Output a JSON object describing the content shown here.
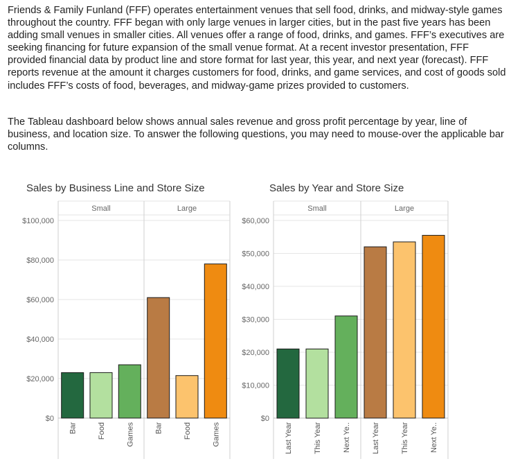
{
  "intro": {
    "paragraph1": "Friends & Family Funland (FFF) operates entertainment venues that sell food, drinks, and midway-style games throughout the country. FFF began with only large venues in larger cities, but in the past five years has been adding small venues in smaller cities. All venues offer a range of food, drinks, and games. FFF’s executives are seeking financing for future expansion of the small venue format. At a recent investor presentation, FFF provided financial data by product line and store format for last year, this year, and next year (forecast). FFF reports revenue at the amount it charges customers for food, drinks, and game services, and cost of goods sold includes FFF’s costs of food, beverages, and midway-game prizes provided to customers.",
    "paragraph2": "The Tableau dashboard below shows annual sales revenue and gross profit percentage by year, line of business, and location size. To answer the following questions, you may need to mouse-over the applicable bar columns."
  },
  "colors": {
    "small_1": "#23683f",
    "small_2": "#b3e09f",
    "small_3": "#64b05c",
    "large_1": "#b97b44",
    "large_2": "#fcc36d",
    "large_3": "#ef8b11",
    "grid": "#e6e6e6",
    "axis": "#cfcfcf"
  },
  "chart_data": [
    {
      "type": "bar",
      "title": "Sales by Business Line and Store Size",
      "groups": [
        "Small",
        "Large"
      ],
      "categories": [
        "Bar",
        "Food",
        "Games"
      ],
      "series": [
        {
          "name": "Small",
          "values": [
            23000,
            23000,
            27000
          ]
        },
        {
          "name": "Large",
          "values": [
            61000,
            21500,
            78000
          ]
        }
      ],
      "yticks": [
        "$0",
        "$20,000",
        "$40,000",
        "$60,000",
        "$80,000",
        "$100,000"
      ],
      "ylim": [
        0,
        100000
      ],
      "xlabel": "",
      "ylabel": "",
      "grid": true
    },
    {
      "type": "bar",
      "title": "Sales by Year and Store Size",
      "groups": [
        "Small",
        "Large"
      ],
      "categories": [
        "Last Year",
        "This Year",
        "Next Ye.."
      ],
      "series": [
        {
          "name": "Small",
          "values": [
            21000,
            21000,
            31000
          ]
        },
        {
          "name": "Large",
          "values": [
            52000,
            53500,
            55500
          ]
        }
      ],
      "yticks": [
        "$0",
        "$10,000",
        "$20,000",
        "$30,000",
        "$40,000",
        "$50,000",
        "$60,000"
      ],
      "ylim": [
        0,
        60000
      ],
      "xlabel": "",
      "ylabel": "",
      "grid": true
    }
  ]
}
